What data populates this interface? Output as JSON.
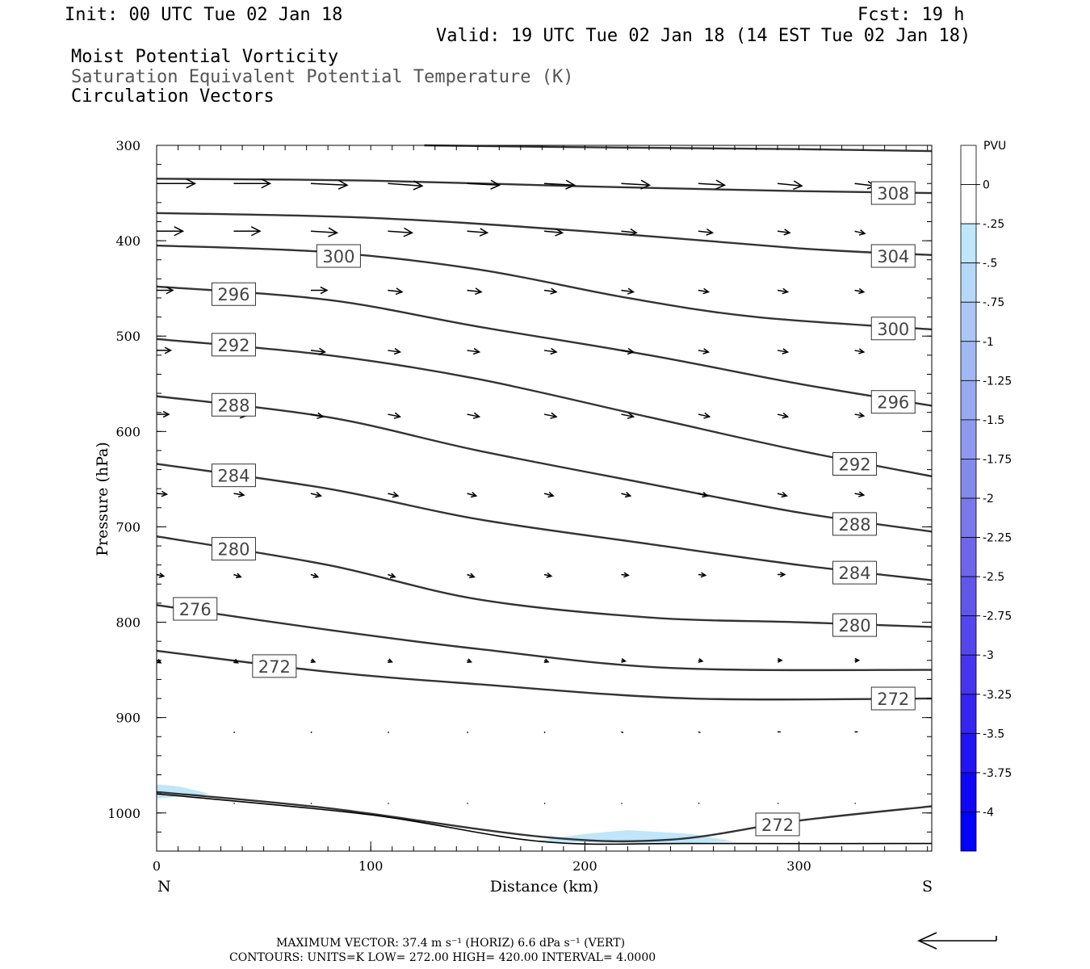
{
  "header": {
    "init": "Init: 00 UTC Tue 02 Jan 18",
    "fcst": "Fcst:   19 h",
    "valid": "Valid: 19 UTC Tue 02 Jan 18 (14 EST Tue 02 Jan 18)",
    "field1": "Moist Potential Vorticity",
    "field2": "Saturation Equivalent Potential Temperature (K)",
    "field3": "Circulation Vectors"
  },
  "colorbar": {
    "unit": "PVU",
    "labels": [
      "0",
      "-.25",
      "-.5",
      "-.75",
      "-1",
      "-1.25",
      "-1.5",
      "-1.75",
      "-2",
      "-2.25",
      "-2.5",
      "-2.75",
      "-3",
      "-3.25",
      "-3.5",
      "-3.75",
      "-4"
    ],
    "colors": [
      "#ffffff",
      "#ffffff",
      "#bfe6fa",
      "#b6d8f7",
      "#acc7f4",
      "#a2b8f2",
      "#98a9f0",
      "#8e99ee",
      "#8489ec",
      "#7a78ea",
      "#6e66ea",
      "#6256ea",
      "#5446ec",
      "#4635ee",
      "#3624f0",
      "#2314f4",
      "#0f06f8",
      "#0000ff"
    ]
  },
  "footer": {
    "line1": "MAXIMUM VECTOR:  37.4 m s⁻¹ (HORIZ)          6.6 dPa s⁻¹ (VERT)",
    "line2": "CONTOURS:  UNITS=K   LOW=   272.00        HIGH=   420.00        INTERVAL=     4.0000"
  },
  "chart_data": {
    "type": "cross-section contour",
    "xlabel": "Distance (km)",
    "ylabel": "Pressure (hPa)",
    "xlim": [
      0,
      362
    ],
    "ylim": [
      1040,
      300
    ],
    "x_ticks": [
      0,
      100,
      200,
      300
    ],
    "y_ticks": [
      300,
      400,
      500,
      600,
      700,
      800,
      900,
      1000
    ],
    "left_end": "N",
    "right_end": "S",
    "contour_interval_K": 4,
    "contours": [
      {
        "label": "308",
        "points": [
          [
            125,
            300
          ],
          [
            200,
            302
          ],
          [
            300,
            304
          ],
          [
            362,
            306
          ]
        ],
        "labels_at": []
      },
      {
        "label": "308",
        "points": [
          [
            0,
            335
          ],
          [
            100,
            337
          ],
          [
            200,
            343
          ],
          [
            300,
            348
          ],
          [
            362,
            350
          ]
        ],
        "labels_at": [
          [
            344,
            350
          ]
        ]
      },
      {
        "label": "304",
        "points": [
          [
            0,
            371
          ],
          [
            100,
            376
          ],
          [
            200,
            390
          ],
          [
            300,
            408
          ],
          [
            362,
            415
          ]
        ],
        "labels_at": [
          [
            344,
            416
          ]
        ]
      },
      {
        "label": "300",
        "points": [
          [
            0,
            405
          ],
          [
            80,
            412
          ],
          [
            150,
            430
          ],
          [
            220,
            460
          ],
          [
            280,
            480
          ],
          [
            362,
            493
          ]
        ],
        "labels_at": [
          [
            85,
            416
          ],
          [
            344,
            492
          ]
        ]
      },
      {
        "label": "296",
        "points": [
          [
            0,
            448
          ],
          [
            80,
            462
          ],
          [
            150,
            490
          ],
          [
            230,
            520
          ],
          [
            300,
            550
          ],
          [
            362,
            573
          ]
        ],
        "labels_at": [
          [
            36,
            456
          ],
          [
            344,
            569
          ]
        ]
      },
      {
        "label": "292",
        "points": [
          [
            0,
            503
          ],
          [
            80,
            520
          ],
          [
            150,
            545
          ],
          [
            230,
            585
          ],
          [
            300,
            620
          ],
          [
            362,
            647
          ]
        ],
        "labels_at": [
          [
            36,
            509
          ],
          [
            326,
            634
          ]
        ]
      },
      {
        "label": "288",
        "points": [
          [
            0,
            563
          ],
          [
            80,
            585
          ],
          [
            150,
            620
          ],
          [
            230,
            655
          ],
          [
            300,
            685
          ],
          [
            362,
            705
          ]
        ],
        "labels_at": [
          [
            36,
            572
          ],
          [
            326,
            697
          ]
        ]
      },
      {
        "label": "284",
        "points": [
          [
            0,
            634
          ],
          [
            80,
            660
          ],
          [
            150,
            692
          ],
          [
            230,
            718
          ],
          [
            300,
            740
          ],
          [
            362,
            756
          ]
        ],
        "labels_at": [
          [
            36,
            646
          ],
          [
            326,
            748
          ]
        ]
      },
      {
        "label": "280",
        "points": [
          [
            0,
            710
          ],
          [
            80,
            740
          ],
          [
            150,
            776
          ],
          [
            230,
            795
          ],
          [
            300,
            800
          ],
          [
            362,
            805
          ]
        ],
        "labels_at": [
          [
            36,
            723
          ],
          [
            326,
            803
          ]
        ]
      },
      {
        "label": "276",
        "points": [
          [
            0,
            782
          ],
          [
            80,
            808
          ],
          [
            150,
            828
          ],
          [
            240,
            848
          ],
          [
            362,
            850
          ]
        ],
        "labels_at": [
          [
            18,
            786
          ]
        ]
      },
      {
        "label": "272",
        "points": [
          [
            0,
            830
          ],
          [
            80,
            852
          ],
          [
            150,
            865
          ],
          [
            250,
            880
          ],
          [
            362,
            880
          ]
        ],
        "labels_at": [
          [
            55,
            846
          ],
          [
            344,
            880
          ]
        ]
      },
      {
        "label": "272",
        "points": [
          [
            0,
            978
          ],
          [
            80,
            995
          ],
          [
            180,
            1025
          ],
          [
            240,
            1028
          ],
          [
            300,
            1008
          ],
          [
            362,
            993
          ]
        ],
        "labels_at": [
          [
            290,
            1012
          ]
        ]
      }
    ],
    "surface_line": [
      [
        0,
        980
      ],
      [
        100,
        1002
      ],
      [
        180,
        1030
      ],
      [
        250,
        1032
      ],
      [
        362,
        1032
      ]
    ],
    "pv_shading": [
      {
        "value": "-.25 to -.5",
        "polygon": [
          [
            0,
            970
          ],
          [
            10,
            972
          ],
          [
            25,
            980
          ],
          [
            0,
            985
          ]
        ]
      },
      {
        "value": "-.25 to -.5",
        "polygon": [
          [
            175,
            1030
          ],
          [
            200,
            1022
          ],
          [
            220,
            1018
          ],
          [
            250,
            1022
          ],
          [
            270,
            1030
          ],
          [
            240,
            1032
          ]
        ]
      }
    ],
    "vectors_note": "circulation vectors (horizontal wind along section, vertical motion)",
    "vector_rows": [
      {
        "p": 340,
        "x": [
          0,
          36,
          72,
          108,
          145,
          181,
          217,
          253,
          290,
          326
        ],
        "len": [
          38,
          36,
          36,
          34,
          32,
          30,
          28,
          26,
          24,
          20
        ],
        "dy": [
          0,
          0,
          2,
          3,
          2,
          2,
          2,
          2,
          3,
          3
        ]
      },
      {
        "p": 390,
        "x": [
          0,
          36,
          72,
          108,
          145,
          181,
          217,
          253,
          290,
          326
        ],
        "len": [
          26,
          26,
          26,
          24,
          20,
          18,
          15,
          14,
          12,
          10
        ],
        "dy": [
          0,
          0,
          2,
          2,
          2,
          2,
          2,
          2,
          2,
          3
        ]
      },
      {
        "p": 452,
        "x": [
          0,
          36,
          72,
          108,
          145,
          181,
          217,
          253,
          290,
          326
        ],
        "len": [
          16,
          16,
          16,
          14,
          14,
          12,
          12,
          10,
          10,
          9
        ],
        "dy": [
          0,
          0,
          0,
          2,
          2,
          2,
          2,
          2,
          2,
          2
        ]
      },
      {
        "p": 515,
        "x": [
          0,
          36,
          72,
          108,
          145,
          181,
          217,
          253,
          290,
          326
        ],
        "len": [
          14,
          14,
          14,
          12,
          12,
          12,
          12,
          10,
          10,
          9
        ],
        "dy": [
          0,
          2,
          2,
          2,
          2,
          2,
          2,
          2,
          2,
          2
        ]
      },
      {
        "p": 582,
        "x": [
          0,
          36,
          72,
          108,
          145,
          181,
          217,
          253,
          290,
          326
        ],
        "len": [
          12,
          12,
          12,
          12,
          12,
          12,
          12,
          11,
          10,
          9
        ],
        "dy": [
          0,
          2,
          3,
          3,
          3,
          3,
          3,
          3,
          3,
          2
        ]
      },
      {
        "p": 665,
        "x": [
          0,
          36,
          72,
          108,
          145,
          181,
          217,
          253,
          290,
          326
        ],
        "len": [
          10,
          10,
          10,
          10,
          9,
          9,
          9,
          9,
          9,
          9
        ],
        "dy": [
          1,
          2,
          3,
          3,
          3,
          3,
          3,
          3,
          3,
          2
        ]
      },
      {
        "p": 750,
        "x": [
          0,
          36,
          72,
          108,
          145,
          181,
          217,
          253,
          290,
          326
        ],
        "len": [
          7,
          7,
          7,
          7,
          7,
          7,
          7,
          7,
          7,
          7
        ],
        "dy": [
          2,
          3,
          3,
          3,
          3,
          2,
          1,
          1,
          0,
          0
        ]
      },
      {
        "p": 840,
        "x": [
          0,
          36,
          72,
          108,
          145,
          181,
          217,
          253,
          290,
          326
        ],
        "len": [
          4,
          4,
          4,
          4,
          4,
          4,
          4,
          4,
          4,
          4
        ],
        "dy": [
          3,
          3,
          2,
          2,
          2,
          2,
          1,
          1,
          0,
          0
        ]
      },
      {
        "p": 915,
        "x": [
          36,
          72,
          108,
          145,
          181,
          217,
          253,
          290,
          326
        ],
        "len": [
          1,
          1,
          1,
          1,
          1,
          2,
          2,
          3,
          3
        ],
        "dy": [
          1,
          1,
          1,
          1,
          1,
          1,
          1,
          0,
          0
        ]
      },
      {
        "p": 990,
        "x": [
          36,
          72,
          108,
          145,
          181,
          217,
          253,
          290,
          326
        ],
        "len": [
          1,
          1,
          1,
          1,
          1,
          1,
          1,
          1,
          1
        ],
        "dy": [
          0,
          0,
          0,
          0,
          0,
          0,
          0,
          0,
          0
        ]
      }
    ]
  }
}
